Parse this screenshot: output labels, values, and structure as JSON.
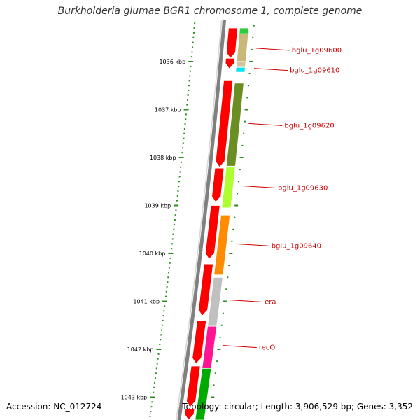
{
  "title": "Burkholderia glumae BGR1 chromosome 1, complete genome",
  "footer": {
    "accession": "Accession: NC_012724",
    "summary": "Topology: circular; Length: 3,906,529 bp; Genes: 3,352"
  },
  "colors": {
    "ruler": "#2e8b22",
    "backbone": "#808080",
    "cds": "#ff0000",
    "label": "#cc0000"
  },
  "ruler": {
    "ticks": [
      {
        "kbp": 1036,
        "label": "1036 kbp"
      },
      {
        "kbp": 1037,
        "label": "1037 kbp"
      },
      {
        "kbp": 1038,
        "label": "1038 kbp"
      },
      {
        "kbp": 1039,
        "label": "1039 kbp"
      },
      {
        "kbp": 1040,
        "label": "1040 kbp"
      },
      {
        "kbp": 1041,
        "label": "1041 kbp"
      },
      {
        "kbp": 1042,
        "label": "1042 kbp"
      },
      {
        "kbp": 1043,
        "label": "1043 kbp"
      }
    ]
  },
  "cds_track": [
    {
      "start": 1035.3,
      "end": 1035.93
    },
    {
      "start": 1035.93,
      "end": 1036.15
    },
    {
      "start": 1036.4,
      "end": 1038.2
    },
    {
      "start": 1038.22,
      "end": 1038.93
    },
    {
      "start": 1039.0,
      "end": 1040.12
    },
    {
      "start": 1040.22,
      "end": 1041.3
    },
    {
      "start": 1041.4,
      "end": 1042.3
    },
    {
      "start": 1042.35,
      "end": 1043.2
    },
    {
      "start": 1043.25,
      "end": 1043.5
    }
  ],
  "feature_track": [
    {
      "start": 1035.3,
      "end": 1035.42,
      "color": "#2ecc40"
    },
    {
      "start": 1035.42,
      "end": 1036.0,
      "color": "#c8b87a"
    },
    {
      "start": 1036.0,
      "end": 1036.12,
      "color": "#d2c79a"
    },
    {
      "start": 1036.12,
      "end": 1036.22,
      "color": "#00e5ee"
    },
    {
      "start": 1036.45,
      "end": 1038.18,
      "color": "#6b8e23"
    },
    {
      "start": 1038.2,
      "end": 1039.05,
      "color": "#adff2f"
    },
    {
      "start": 1039.2,
      "end": 1040.45,
      "color": "#ff8c00"
    },
    {
      "start": 1040.5,
      "end": 1041.52,
      "color": "#c0c0c0"
    },
    {
      "start": 1041.52,
      "end": 1042.4,
      "color": "#ff1493"
    },
    {
      "start": 1042.4,
      "end": 1043.5,
      "color": "#00aa00"
    }
  ],
  "genes": [
    {
      "name": "bglu_1g09600",
      "kbp": 1035.75
    },
    {
      "name": "bglu_1g09610",
      "kbp": 1036.17
    },
    {
      "name": "bglu_1g09620",
      "kbp": 1037.32
    },
    {
      "name": "bglu_1g09630",
      "kbp": 1038.62
    },
    {
      "name": "bglu_1g09640",
      "kbp": 1039.83
    },
    {
      "name": "era",
      "kbp": 1041.0
    },
    {
      "name": "recO",
      "kbp": 1041.95
    }
  ]
}
